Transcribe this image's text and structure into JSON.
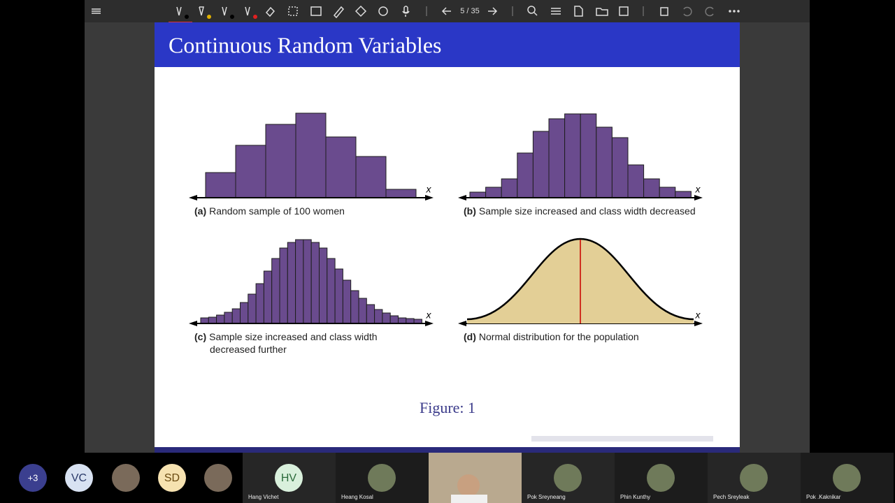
{
  "toolbar": {
    "page": "5 / 35"
  },
  "slide": {
    "title": "Continuous Random Variables",
    "figure_caption": "Figure: 1",
    "panels": [
      {
        "type": "histogram",
        "label": "(a)",
        "caption": [
          "Random sample of 100 women"
        ],
        "axis_label": "x",
        "heights": [
          36,
          75,
          105,
          121,
          87,
          59,
          12
        ]
      },
      {
        "type": "histogram",
        "label": "(b)",
        "caption": [
          "Sample size increased and class width decreased"
        ],
        "axis_label": "x",
        "heights": [
          8,
          15,
          27,
          64,
          95,
          113,
          120,
          120,
          101,
          86,
          47,
          27,
          15,
          9
        ]
      },
      {
        "type": "histogram",
        "label": "(c)",
        "caption": [
          "Sample size increased and class width",
          "decreased further"
        ],
        "axis_label": "x",
        "heights": [
          8,
          9,
          12,
          16,
          21,
          30,
          42,
          57,
          75,
          93,
          108,
          116,
          120,
          120,
          116,
          108,
          93,
          78,
          62,
          47,
          36,
          27,
          20,
          15,
          11,
          8,
          7,
          6
        ]
      },
      {
        "type": "curve",
        "label": "(d)",
        "caption": [
          "Normal distribution for the population"
        ],
        "axis_label": "x"
      }
    ]
  },
  "participants": {
    "avatars": [
      "+3",
      "VC",
      "SD"
    ],
    "tiles": [
      {
        "initials": "HV",
        "name": "Hang Vichet"
      },
      {
        "name": "Heang Kosal"
      },
      {
        "name": "Pok Sreyneang"
      },
      {
        "name": "Phin Kunthy"
      },
      {
        "name": "Pech Sreyleak"
      },
      {
        "name": "Pok .Kaknikar"
      }
    ]
  }
}
